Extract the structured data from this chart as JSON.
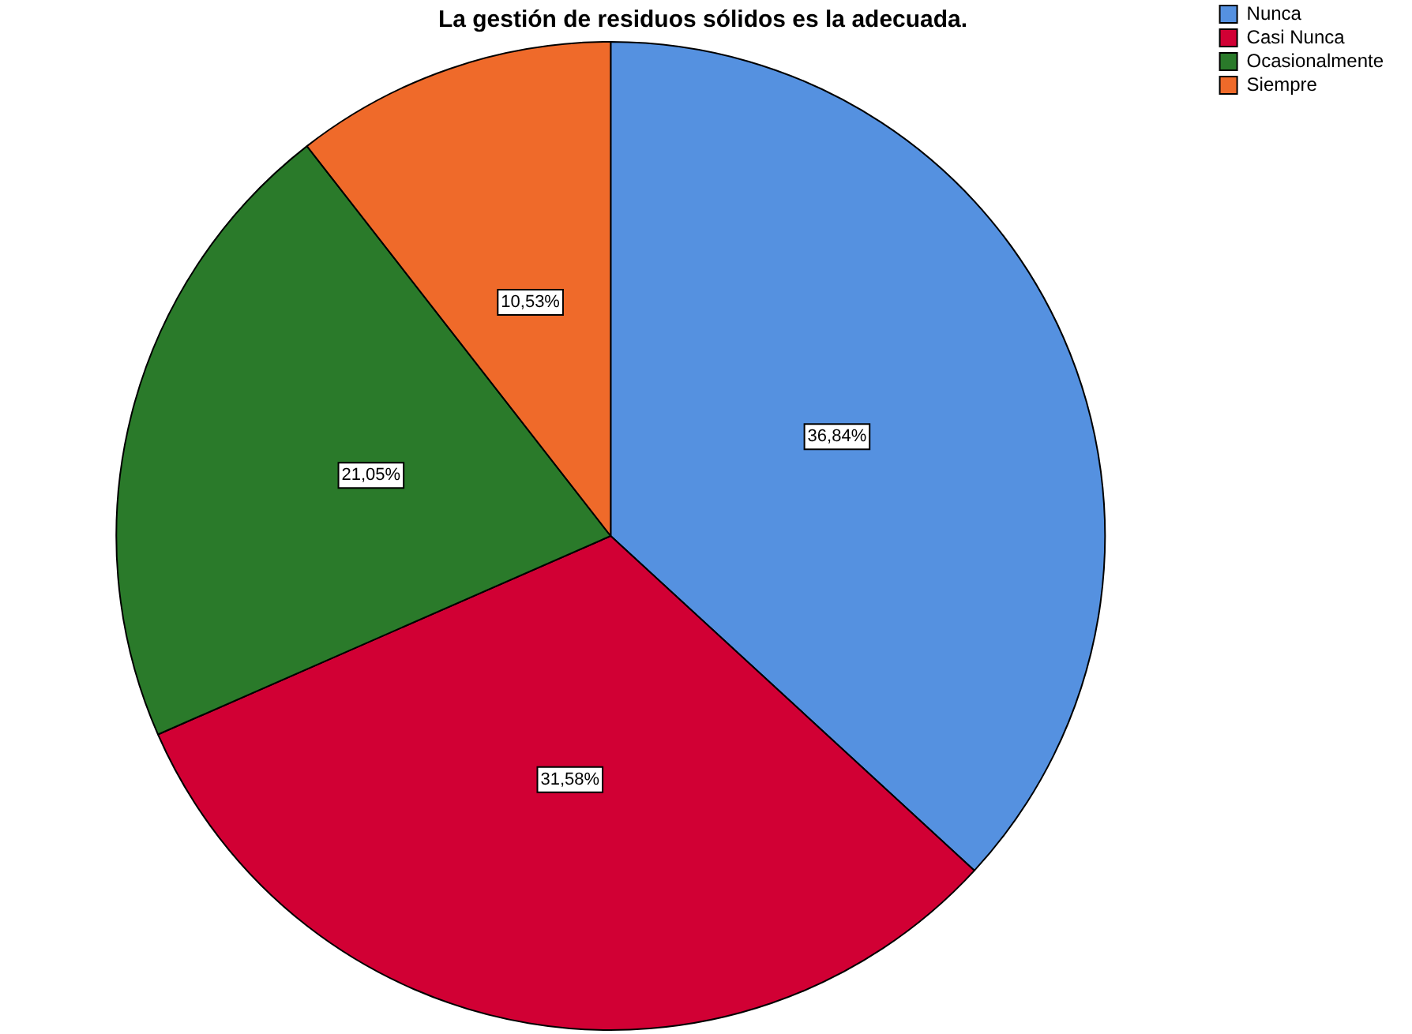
{
  "chart_data": {
    "type": "pie",
    "title": "La gestión de residuos sólidos es la adecuada.",
    "categories": [
      "Nunca",
      "Casi Nunca",
      "Ocasionalmente",
      "Siempre"
    ],
    "values": [
      36.84,
      31.58,
      21.05,
      10.53
    ],
    "value_labels": [
      "36,84%",
      "31,58%",
      "21,05%",
      "10,53%"
    ],
    "colors": [
      "#5591e0",
      "#d10034",
      "#2a7a2a",
      "#ef6a2a"
    ],
    "legend": "top right"
  }
}
